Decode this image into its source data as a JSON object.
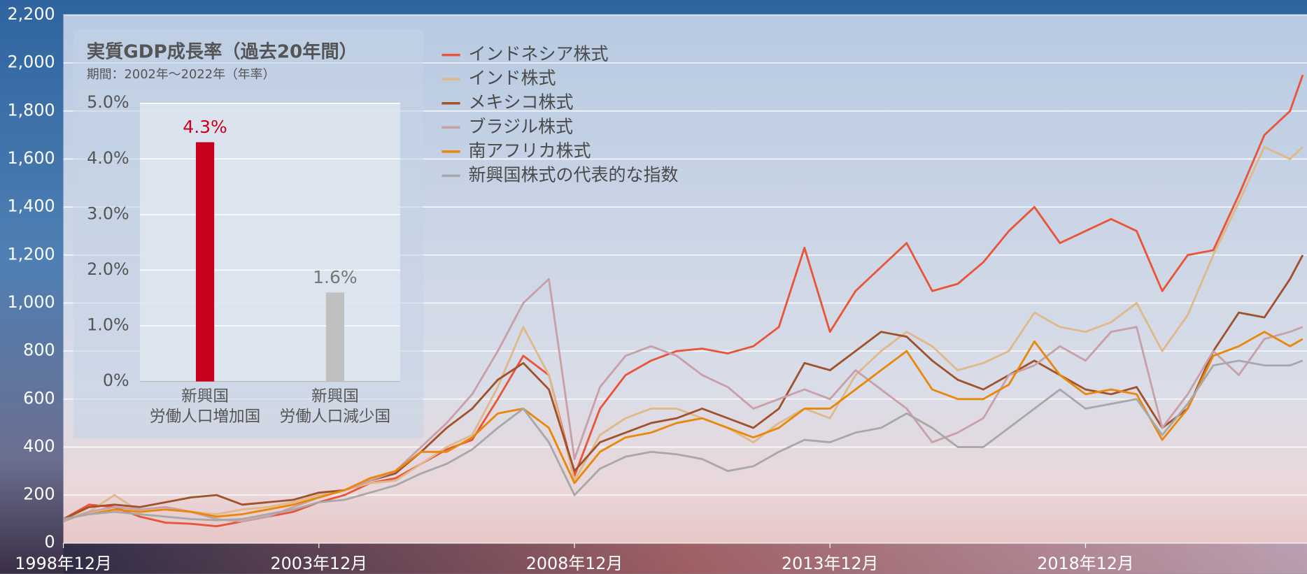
{
  "chart_data": [
    {
      "type": "line",
      "x": [
        "1998-12",
        "1999-06",
        "1999-12",
        "2000-06",
        "2000-12",
        "2001-06",
        "2001-12",
        "2002-06",
        "2002-12",
        "2003-06",
        "2003-12",
        "2004-06",
        "2004-12",
        "2005-06",
        "2005-12",
        "2006-06",
        "2006-12",
        "2007-06",
        "2007-12",
        "2008-06",
        "2008-12",
        "2009-06",
        "2009-12",
        "2010-06",
        "2010-12",
        "2011-06",
        "2011-12",
        "2012-06",
        "2012-12",
        "2013-06",
        "2013-12",
        "2014-06",
        "2014-12",
        "2015-06",
        "2015-12",
        "2016-06",
        "2016-12",
        "2017-06",
        "2017-12",
        "2018-06",
        "2018-12",
        "2019-06",
        "2019-12",
        "2020-06",
        "2020-12",
        "2021-06",
        "2021-12",
        "2022-06",
        "2022-12",
        "2023-03"
      ],
      "series": [
        {
          "name": "インドネシア株式",
          "color": "#e8553a",
          "values": [
            100,
            160,
            150,
            110,
            85,
            80,
            70,
            90,
            110,
            130,
            170,
            200,
            250,
            270,
            330,
            390,
            430,
            600,
            780,
            700,
            280,
            560,
            700,
            760,
            800,
            810,
            790,
            820,
            900,
            1230,
            880,
            1050,
            1150,
            1250,
            1050,
            1080,
            1170,
            1300,
            1400,
            1250,
            1300,
            1350,
            1300,
            1050,
            1200,
            1220,
            1450,
            1700,
            1800,
            1950
          ]
        },
        {
          "name": "インド株式",
          "color": "#dfb98a",
          "values": [
            100,
            130,
            200,
            130,
            140,
            130,
            120,
            140,
            150,
            170,
            200,
            220,
            250,
            260,
            330,
            400,
            450,
            650,
            900,
            700,
            260,
            450,
            520,
            560,
            560,
            520,
            480,
            420,
            500,
            560,
            520,
            700,
            800,
            880,
            820,
            720,
            750,
            800,
            960,
            900,
            880,
            920,
            1000,
            800,
            950,
            1200,
            1420,
            1650,
            1600,
            1650
          ]
        },
        {
          "name": "メキシコ株式",
          "color": "#a0522d",
          "values": [
            100,
            150,
            160,
            150,
            170,
            190,
            200,
            160,
            170,
            180,
            210,
            220,
            260,
            290,
            380,
            480,
            560,
            680,
            750,
            640,
            300,
            420,
            460,
            500,
            520,
            560,
            520,
            480,
            560,
            750,
            720,
            800,
            880,
            860,
            760,
            680,
            640,
            700,
            760,
            700,
            640,
            620,
            650,
            480,
            560,
            800,
            960,
            940,
            1100,
            1200
          ]
        },
        {
          "name": "ブラジル株式",
          "color": "#c9a0a8",
          "values": [
            90,
            130,
            150,
            140,
            150,
            130,
            100,
            90,
            110,
            150,
            190,
            220,
            260,
            300,
            400,
            500,
            620,
            800,
            1000,
            1100,
            350,
            650,
            780,
            820,
            780,
            700,
            650,
            560,
            600,
            640,
            600,
            720,
            640,
            560,
            420,
            460,
            520,
            700,
            740,
            820,
            760,
            880,
            900,
            480,
            620,
            800,
            700,
            850,
            880,
            900
          ]
        },
        {
          "name": "南アフリカ株式",
          "color": "#e8880c",
          "values": [
            100,
            120,
            140,
            130,
            140,
            130,
            110,
            120,
            140,
            160,
            190,
            220,
            270,
            300,
            380,
            380,
            440,
            540,
            560,
            480,
            250,
            380,
            440,
            460,
            500,
            520,
            480,
            440,
            480,
            560,
            560,
            640,
            720,
            800,
            640,
            600,
            600,
            660,
            840,
            700,
            620,
            640,
            620,
            430,
            560,
            780,
            820,
            880,
            820,
            850
          ]
        },
        {
          "name": "新興国株式の代表的な指数",
          "color": "#a8a8a8",
          "values": [
            100,
            120,
            130,
            120,
            110,
            100,
            95,
            100,
            120,
            140,
            170,
            180,
            210,
            240,
            290,
            330,
            390,
            480,
            560,
            420,
            200,
            310,
            360,
            380,
            370,
            350,
            300,
            320,
            380,
            430,
            420,
            460,
            480,
            540,
            480,
            400,
            400,
            480,
            560,
            640,
            560,
            580,
            600,
            450,
            580,
            740,
            760,
            740,
            740,
            760
          ]
        }
      ],
      "xlim": [
        "1998-12",
        "2023-04"
      ],
      "xticks": [
        {
          "value": "1998-12",
          "label": "1998年12月"
        },
        {
          "value": "2003-12",
          "label": "2003年12月"
        },
        {
          "value": "2008-12",
          "label": "2008年12月"
        },
        {
          "value": "2013-12",
          "label": "2013年12月"
        },
        {
          "value": "2018-12",
          "label": "2018年12月"
        }
      ],
      "ylim": [
        0,
        2200
      ],
      "yticks": [
        0,
        200,
        400,
        600,
        800,
        {
          "value": 1000,
          "label": "1,000"
        },
        {
          "value": 1200,
          "label": "1,200"
        },
        {
          "value": 1400,
          "label": "1,400"
        },
        {
          "value": 1600,
          "label": "1,600"
        },
        {
          "value": 1800,
          "label": "1,800"
        },
        {
          "value": 2000,
          "label": "2,000"
        },
        {
          "value": 2200,
          "label": "2,200"
        }
      ],
      "grid": true,
      "legend": "upper center"
    },
    {
      "type": "bar",
      "title": "実質GDP成長率（過去20年間）",
      "subtitle": "期間：2002年〜2022年（年率）",
      "categories": [
        "新興国\n労働人口増加国",
        "新興国\n労働人口減少国"
      ],
      "values": [
        4.3,
        1.6
      ],
      "value_labels": [
        "4.3%",
        "1.6%"
      ],
      "colors": [
        "#c8001e",
        "#c0c0c0"
      ],
      "ylim": [
        0,
        5
      ],
      "yticks": [
        {
          "value": 0,
          "label": "0%"
        },
        {
          "value": 1,
          "label": "1.0%"
        },
        {
          "value": 2,
          "label": "2.0%"
        },
        {
          "value": 3,
          "label": "3.0%"
        },
        {
          "value": 4,
          "label": "4.0%"
        },
        {
          "value": 5,
          "label": "5.0%"
        }
      ],
      "grid": true
    }
  ]
}
